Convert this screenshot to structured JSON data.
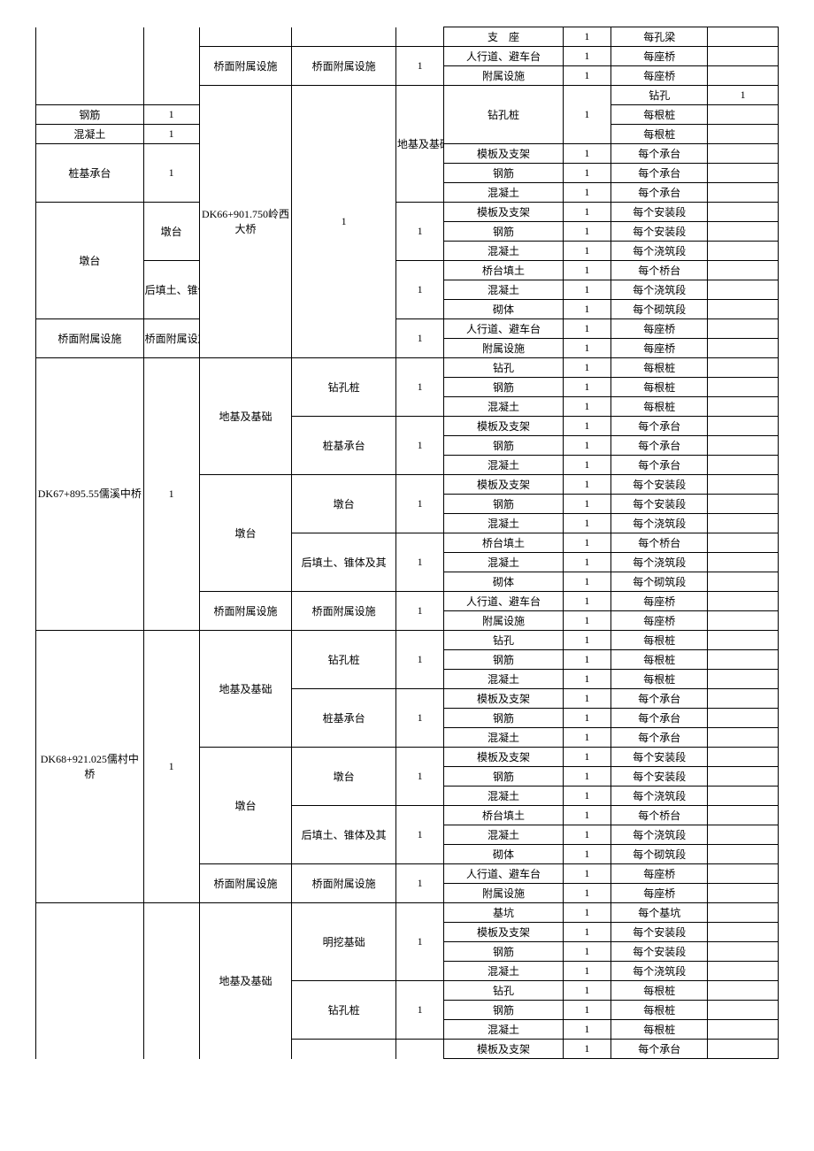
{
  "table": {
    "background_color": "#ffffff",
    "border_color": "#000000",
    "font_family": "SimSun",
    "font_size": 12,
    "column_widths_pct": [
      14.5,
      7.5,
      12.5,
      14,
      6.5,
      16,
      6.5,
      13,
      9.5
    ],
    "sections": [
      {
        "a": "",
        "b": "",
        "a_rowspan": 4,
        "b_rowspan": 4,
        "a_no_top": true,
        "b_no_top": true,
        "groups": [
          {
            "c": "",
            "c_rowspan": 1,
            "c_no_top": true,
            "subs": [
              {
                "d": "",
                "e": "",
                "d_rowspan": 1,
                "d_no_top": true,
                "e_no_top": true,
                "items": [
                  {
                    "f": "支　座",
                    "g": "1",
                    "h": "每孔梁",
                    "i": ""
                  }
                ]
              }
            ]
          },
          {
            "c": "桥面附属设施",
            "c_rowspan": 2,
            "subs": [
              {
                "d": "桥面附属设施",
                "e": "1",
                "d_rowspan": 2,
                "items": [
                  {
                    "f": "人行道、避车台",
                    "g": "1",
                    "h": "每座桥",
                    "i": ""
                  },
                  {
                    "f": "附属设施",
                    "g": "1",
                    "h": "每座桥",
                    "i": ""
                  }
                ]
              }
            ]
          }
        ]
      },
      {
        "a": "DK66+901.750岭西大桥",
        "b": "1",
        "a_rowspan": 14,
        "b_rowspan": 14,
        "groups": [
          {
            "c": "地基及基础",
            "c_rowspan": 6,
            "subs": [
              {
                "d": "钻孔桩",
                "e": "1",
                "d_rowspan": 3,
                "items": [
                  {
                    "f": "钻孔",
                    "g": "1",
                    "h": "每根桩",
                    "i": ""
                  },
                  {
                    "f": "钢筋",
                    "g": "1",
                    "h": "每根桩",
                    "i": ""
                  },
                  {
                    "f": "混凝土",
                    "g": "1",
                    "h": "每根桩",
                    "i": ""
                  }
                ]
              },
              {
                "d": "桩基承台",
                "e": "1",
                "d_rowspan": 3,
                "items": [
                  {
                    "f": "模板及支架",
                    "g": "1",
                    "h": "每个承台",
                    "i": ""
                  },
                  {
                    "f": "钢筋",
                    "g": "1",
                    "h": "每个承台",
                    "i": ""
                  },
                  {
                    "f": "混凝土",
                    "g": "1",
                    "h": "每个承台",
                    "i": ""
                  }
                ]
              }
            ]
          },
          {
            "c": "墩台",
            "c_rowspan": 6,
            "subs": [
              {
                "d": "墩台",
                "e": "1",
                "d_rowspan": 3,
                "items": [
                  {
                    "f": "模板及支架",
                    "g": "1",
                    "h": "每个安装段",
                    "i": ""
                  },
                  {
                    "f": "钢筋",
                    "g": "1",
                    "h": "每个安装段",
                    "i": ""
                  },
                  {
                    "f": "混凝土",
                    "g": "1",
                    "h": "每个浇筑段",
                    "i": ""
                  }
                ]
              },
              {
                "d": "后填土、锥体及其",
                "e": "1",
                "d_rowspan": 3,
                "items": [
                  {
                    "f": "桥台填土",
                    "g": "1",
                    "h": "每个桥台",
                    "i": ""
                  },
                  {
                    "f": "混凝土",
                    "g": "1",
                    "h": "每个浇筑段",
                    "i": ""
                  },
                  {
                    "f": "砌体",
                    "g": "1",
                    "h": "每个砌筑段",
                    "i": ""
                  }
                ]
              }
            ]
          },
          {
            "c": "桥面附属设施",
            "c_rowspan": 2,
            "subs": [
              {
                "d": "桥面附属设施",
                "e": "1",
                "d_rowspan": 2,
                "items": [
                  {
                    "f": "人行道、避车台",
                    "g": "1",
                    "h": "每座桥",
                    "i": ""
                  },
                  {
                    "f": "附属设施",
                    "g": "1",
                    "h": "每座桥",
                    "i": ""
                  }
                ]
              }
            ]
          }
        ]
      },
      {
        "a": "DK67+895.55儒溪中桥",
        "b": "1",
        "a_rowspan": 14,
        "b_rowspan": 14,
        "groups": [
          {
            "c": "地基及基础",
            "c_rowspan": 6,
            "subs": [
              {
                "d": "钻孔桩",
                "e": "1",
                "d_rowspan": 3,
                "items": [
                  {
                    "f": "钻孔",
                    "g": "1",
                    "h": "每根桩",
                    "i": ""
                  },
                  {
                    "f": "钢筋",
                    "g": "1",
                    "h": "每根桩",
                    "i": ""
                  },
                  {
                    "f": "混凝土",
                    "g": "1",
                    "h": "每根桩",
                    "i": ""
                  }
                ]
              },
              {
                "d": "桩基承台",
                "e": "1",
                "d_rowspan": 3,
                "items": [
                  {
                    "f": "模板及支架",
                    "g": "1",
                    "h": "每个承台",
                    "i": ""
                  },
                  {
                    "f": "钢筋",
                    "g": "1",
                    "h": "每个承台",
                    "i": ""
                  },
                  {
                    "f": "混凝土",
                    "g": "1",
                    "h": "每个承台",
                    "i": ""
                  }
                ]
              }
            ]
          },
          {
            "c": "墩台",
            "c_rowspan": 6,
            "subs": [
              {
                "d": "墩台",
                "e": "1",
                "d_rowspan": 3,
                "items": [
                  {
                    "f": "模板及支架",
                    "g": "1",
                    "h": "每个安装段",
                    "i": ""
                  },
                  {
                    "f": "钢筋",
                    "g": "1",
                    "h": "每个安装段",
                    "i": ""
                  },
                  {
                    "f": "混凝土",
                    "g": "1",
                    "h": "每个浇筑段",
                    "i": ""
                  }
                ]
              },
              {
                "d": "后填土、锥体及其",
                "e": "1",
                "d_rowspan": 3,
                "items": [
                  {
                    "f": "桥台填土",
                    "g": "1",
                    "h": "每个桥台",
                    "i": ""
                  },
                  {
                    "f": "混凝土",
                    "g": "1",
                    "h": "每个浇筑段",
                    "i": ""
                  },
                  {
                    "f": "砌体",
                    "g": "1",
                    "h": "每个砌筑段",
                    "i": ""
                  }
                ]
              }
            ]
          },
          {
            "c": "桥面附属设施",
            "c_rowspan": 2,
            "subs": [
              {
                "d": "桥面附属设施",
                "e": "1",
                "d_rowspan": 2,
                "items": [
                  {
                    "f": "人行道、避车台",
                    "g": "1",
                    "h": "每座桥",
                    "i": ""
                  },
                  {
                    "f": "附属设施",
                    "g": "1",
                    "h": "每座桥",
                    "i": ""
                  }
                ]
              }
            ]
          }
        ]
      },
      {
        "a": "DK68+921.025儒村中桥",
        "b": "1",
        "a_rowspan": 14,
        "b_rowspan": 14,
        "groups": [
          {
            "c": "地基及基础",
            "c_rowspan": 6,
            "subs": [
              {
                "d": "钻孔桩",
                "e": "1",
                "d_rowspan": 3,
                "items": [
                  {
                    "f": "钻孔",
                    "g": "1",
                    "h": "每根桩",
                    "i": ""
                  },
                  {
                    "f": "钢筋",
                    "g": "1",
                    "h": "每根桩",
                    "i": ""
                  },
                  {
                    "f": "混凝土",
                    "g": "1",
                    "h": "每根桩",
                    "i": ""
                  }
                ]
              },
              {
                "d": "桩基承台",
                "e": "1",
                "d_rowspan": 3,
                "items": [
                  {
                    "f": "模板及支架",
                    "g": "1",
                    "h": "每个承台",
                    "i": ""
                  },
                  {
                    "f": "钢筋",
                    "g": "1",
                    "h": "每个承台",
                    "i": ""
                  },
                  {
                    "f": "混凝土",
                    "g": "1",
                    "h": "每个承台",
                    "i": ""
                  }
                ]
              }
            ]
          },
          {
            "c": "墩台",
            "c_rowspan": 6,
            "subs": [
              {
                "d": "墩台",
                "e": "1",
                "d_rowspan": 3,
                "items": [
                  {
                    "f": "模板及支架",
                    "g": "1",
                    "h": "每个安装段",
                    "i": ""
                  },
                  {
                    "f": "钢筋",
                    "g": "1",
                    "h": "每个安装段",
                    "i": ""
                  },
                  {
                    "f": "混凝土",
                    "g": "1",
                    "h": "每个浇筑段",
                    "i": ""
                  }
                ]
              },
              {
                "d": "后填土、锥体及其",
                "e": "1",
                "d_rowspan": 3,
                "items": [
                  {
                    "f": "桥台填土",
                    "g": "1",
                    "h": "每个桥台",
                    "i": ""
                  },
                  {
                    "f": "混凝土",
                    "g": "1",
                    "h": "每个浇筑段",
                    "i": ""
                  },
                  {
                    "f": "砌体",
                    "g": "1",
                    "h": "每个砌筑段",
                    "i": ""
                  }
                ]
              }
            ]
          },
          {
            "c": "桥面附属设施",
            "c_rowspan": 2,
            "subs": [
              {
                "d": "桥面附属设施",
                "e": "1",
                "d_rowspan": 2,
                "items": [
                  {
                    "f": "人行道、避车台",
                    "g": "1",
                    "h": "每座桥",
                    "i": ""
                  },
                  {
                    "f": "附属设施",
                    "g": "1",
                    "h": "每座桥",
                    "i": ""
                  }
                ]
              }
            ]
          }
        ]
      },
      {
        "a": "",
        "b": "",
        "a_rowspan": 8,
        "b_rowspan": 8,
        "a_no_bottom": true,
        "b_no_bottom": true,
        "groups": [
          {
            "c": "地基及基础",
            "c_rowspan": 8,
            "c_no_bottom": true,
            "subs": [
              {
                "d": "明挖基础",
                "e": "1",
                "d_rowspan": 4,
                "items": [
                  {
                    "f": "基坑",
                    "g": "1",
                    "h": "每个基坑",
                    "i": ""
                  },
                  {
                    "f": "模板及支架",
                    "g": "1",
                    "h": "每个安装段",
                    "i": ""
                  },
                  {
                    "f": "钢筋",
                    "g": "1",
                    "h": "每个安装段",
                    "i": ""
                  },
                  {
                    "f": "混凝土",
                    "g": "1",
                    "h": "每个浇筑段",
                    "i": ""
                  }
                ]
              },
              {
                "d": "钻孔桩",
                "e": "1",
                "d_rowspan": 3,
                "items": [
                  {
                    "f": "钻孔",
                    "g": "1",
                    "h": "每根桩",
                    "i": ""
                  },
                  {
                    "f": "钢筋",
                    "g": "1",
                    "h": "每根桩",
                    "i": ""
                  },
                  {
                    "f": "混凝土",
                    "g": "1",
                    "h": "每根桩",
                    "i": ""
                  }
                ]
              },
              {
                "d": "",
                "e": "",
                "d_rowspan": 1,
                "d_no_bottom": true,
                "e_no_bottom": true,
                "items": [
                  {
                    "f": "模板及支架",
                    "g": "1",
                    "h": "每个承台",
                    "i": "",
                    "no_bottom": false
                  }
                ]
              }
            ]
          }
        ]
      }
    ]
  }
}
